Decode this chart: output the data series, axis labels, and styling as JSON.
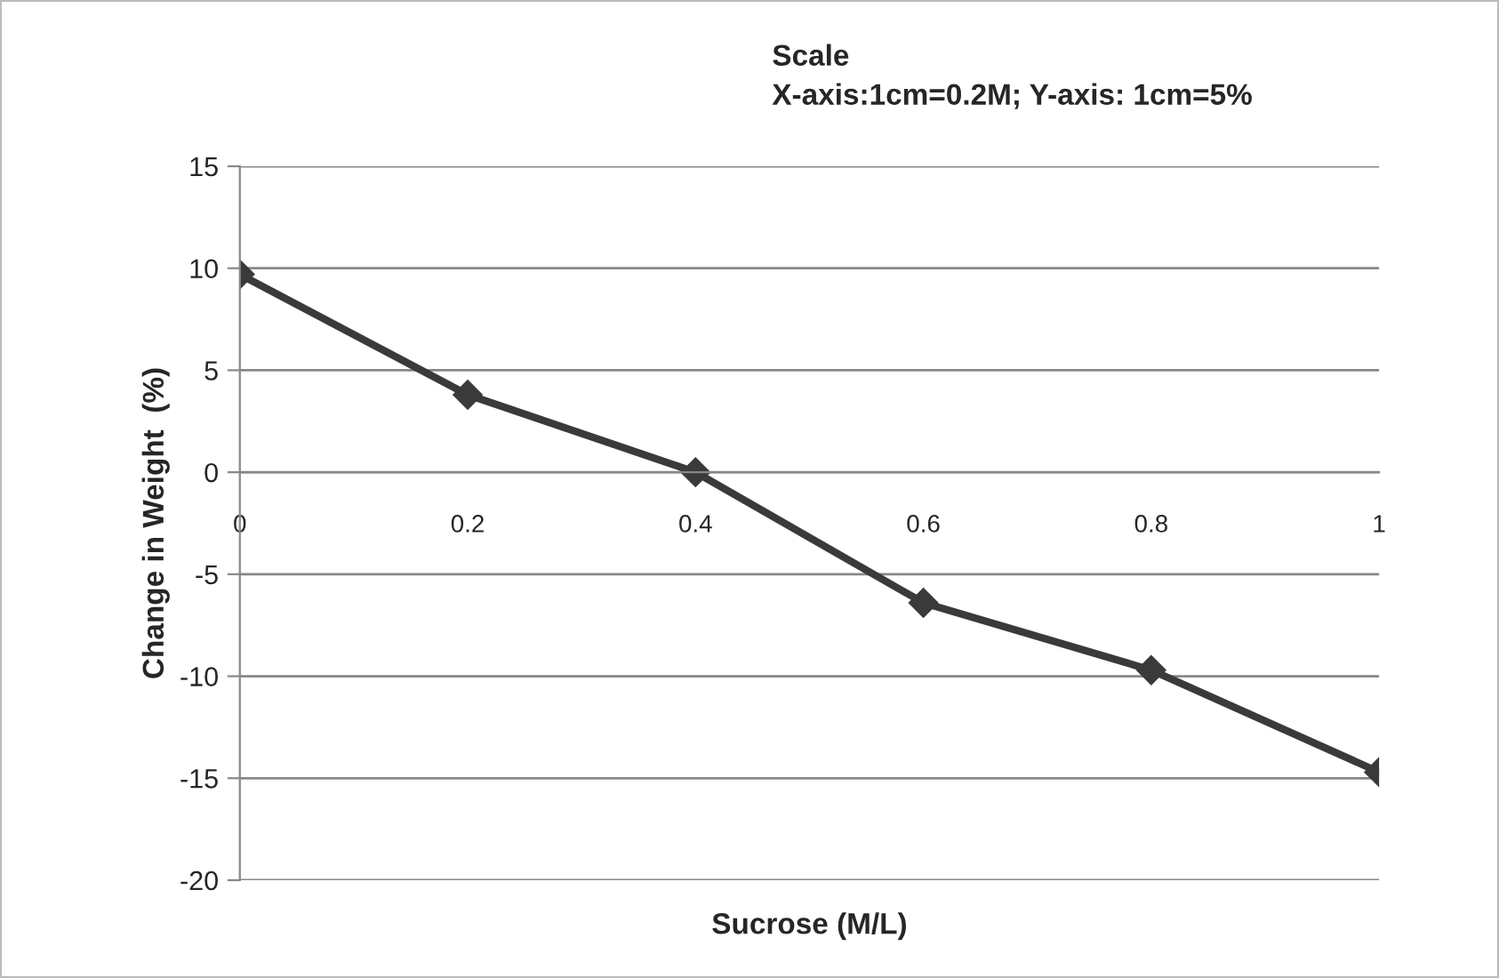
{
  "chart_data": {
    "type": "line",
    "xlabel": "Sucrose (M/L)",
    "ylabel": "Change in Weight  (%)",
    "annotations": [
      "Scale",
      "X-axis:1cm=0.2M; Y-axis: 1cm=5%"
    ],
    "x": [
      0,
      0.2,
      0.4,
      0.6,
      0.8,
      1
    ],
    "series": [
      {
        "color": "#3a3a3a",
        "values": [
          9.7,
          3.8,
          0,
          -6.4,
          -9.7,
          -14.7
        ]
      }
    ],
    "xlim": [
      0,
      1
    ],
    "xticks": [
      0,
      0.2,
      0.4,
      0.6,
      0.8,
      1
    ],
    "ylim": [
      -20,
      15
    ],
    "yticks": [
      15,
      10,
      5,
      0,
      -5,
      -10,
      -15,
      -20
    ],
    "grid": "y",
    "marker": "diamond",
    "line_style": "solid",
    "legend": false
  }
}
